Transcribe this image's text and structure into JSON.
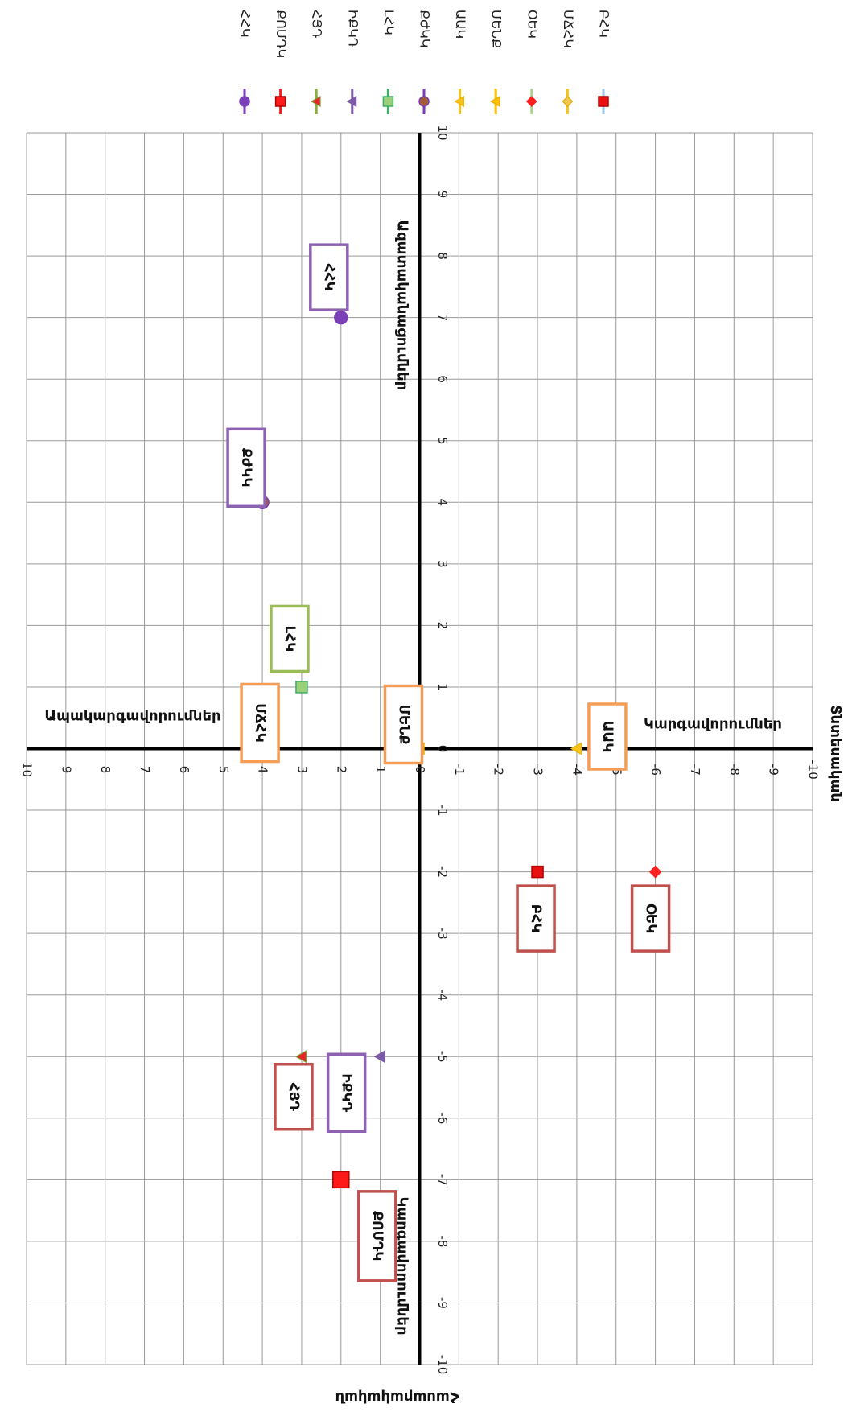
{
  "chart_data": {
    "type": "scatter",
    "x_axis": {
      "range": [
        -10,
        10
      ],
      "ticks": [
        "10",
        "9",
        "8",
        "7",
        "6",
        "5",
        "4",
        "3",
        "2",
        "1",
        "0",
        "-1",
        "-2",
        "-3",
        "-4",
        "-5",
        "-6",
        "-7",
        "-8",
        "-9",
        "-10"
      ],
      "positive_label": "Ապակարգավորումներ",
      "negative_label": "Կարգավորումներ",
      "end_label": "Տնտեսական"
    },
    "y_axis": {
      "range": [
        -10,
        10
      ],
      "ticks": [
        "10",
        "9",
        "8",
        "7",
        "6",
        "5",
        "4",
        "3",
        "2",
        "1",
        "0",
        "-1",
        "-2",
        "-3",
        "-4",
        "-5",
        "-6",
        "-7",
        "-8",
        "-9",
        "-10"
      ],
      "positive_label": "Ազատականացումներ",
      "negative_label": "Կարգավորումներ",
      "end_label": "Հասարակական"
    },
    "grid": true,
    "legend_position": "top",
    "series": [
      {
        "name": "ՀՀԿ",
        "x": 2,
        "y": 7,
        "marker": "circle",
        "color": "#7b3fb8",
        "edge": "#7b3fb8",
        "line": "#7b3fb8",
        "label_box": "#8e62b3"
      },
      {
        "name": "ՔՈՄԴԿ",
        "x": 2,
        "y": -7,
        "marker": "square",
        "color": "#ff1a1a",
        "edge": "#b30000",
        "line": "#ff1a1a",
        "label_box": "#c0504d"
      },
      {
        "name": "ՀՅԴ",
        "x": 3,
        "y": -5,
        "marker": "triangle",
        "color": "#e8242a",
        "edge": "#7a9a2e",
        "line": "#8ab043",
        "label_box": "#c0504d"
      },
      {
        "name": "ԻՔԿԴ",
        "x": 1,
        "y": -5,
        "marker": "triangle",
        "color": "#7c5aa6",
        "edge": "#7c5aa6",
        "line": "#7c5aa6",
        "label_box": "#8e62b3"
      },
      {
        "name": "ԼՀԿ",
        "x": 3,
        "y": 1,
        "marker": "square",
        "color": "#9bd07a",
        "edge": "#3fae69",
        "line": "#3fae69",
        "label_box": "#9bbb59"
      },
      {
        "name": "ՔԺԿԿ",
        "x": 4,
        "y": 4,
        "marker": "circle",
        "color": "#a45a3d",
        "edge": "#7b3fb8",
        "line": "#7b3fb8",
        "label_box": "#8e62b3"
      },
      {
        "name": "ԱԱԿ",
        "x": -4,
        "y": 0,
        "marker": "triangle",
        "color": "#f5c31c",
        "edge": "#f0b400",
        "line": "#f5c31c",
        "label_box": "#f59d56"
      },
      {
        "name": "ՄԵՆՔ",
        "x": 0,
        "y": 0,
        "marker": "triangle",
        "color": "#ffc000",
        "edge": "#e6a800",
        "line": "#ffc000",
        "label_box": "#f59d56"
      },
      {
        "name": "ՕԵԿ",
        "x": -6,
        "y": -2,
        "marker": "diamond",
        "color": "#ff2020",
        "edge": "#ff2020",
        "line": "#a9d18e",
        "label_box": "#c0504d"
      },
      {
        "name": "ՄՃՀԿ",
        "x": 4,
        "y": 0,
        "marker": "diamond",
        "color": "#f0c850",
        "edge": "#e6a800",
        "line": "#f5c31c",
        "label_box": "#f59d56"
      },
      {
        "name": "ԲՀԿ",
        "x": -3,
        "y": -2,
        "marker": "square",
        "color": "#e81010",
        "edge": "#b30000",
        "line": "#9dc3e6",
        "label_box": "#c0504d"
      }
    ]
  }
}
